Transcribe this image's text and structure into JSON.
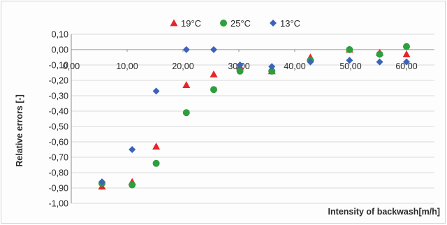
{
  "chart_data": {
    "type": "scatter",
    "xlabel": "Intensity of backwash[m/h]",
    "ylabel": "Relative errors [-]",
    "xlim": [
      0,
      65
    ],
    "ylim": [
      -1.0,
      0.1
    ],
    "x_ticks": [
      "0,00",
      "10,00",
      "20,00",
      "30,00",
      "40,00",
      "50,00",
      "60,00"
    ],
    "x_tick_values": [
      0,
      10,
      20,
      30,
      40,
      50,
      60
    ],
    "y_ticks": [
      "0,10",
      "0,00",
      "-0,10",
      "-0,20",
      "-0,30",
      "-0,40",
      "-0,50",
      "-0,60",
      "-0,70",
      "-0,80",
      "-0,90",
      "-1,00"
    ],
    "y_tick_values": [
      0.1,
      0.0,
      -0.1,
      -0.2,
      -0.3,
      -0.4,
      -0.5,
      -0.6,
      -0.7,
      -0.8,
      -0.9,
      -1.0
    ],
    "grid": "horizontal",
    "legend_position": "top",
    "series": [
      {
        "name": "19°C",
        "marker": "triangle",
        "color": "#e8232a",
        "points": [
          [
            5.5,
            -0.89
          ],
          [
            10.9,
            -0.86
          ],
          [
            15.2,
            -0.63
          ],
          [
            20.6,
            -0.23
          ],
          [
            25.5,
            -0.16
          ],
          [
            30.2,
            -0.11
          ],
          [
            35.9,
            -0.14
          ],
          [
            42.8,
            -0.05
          ],
          [
            49.8,
            0.0
          ],
          [
            55.2,
            -0.02
          ],
          [
            60.0,
            -0.03
          ]
        ]
      },
      {
        "name": "25°C",
        "marker": "circle",
        "color": "#2f9e3f",
        "points": [
          [
            5.5,
            -0.87
          ],
          [
            10.9,
            -0.88
          ],
          [
            15.2,
            -0.74
          ],
          [
            20.6,
            -0.41
          ],
          [
            25.5,
            -0.26
          ],
          [
            30.2,
            -0.14
          ],
          [
            35.9,
            -0.14
          ],
          [
            42.8,
            -0.07
          ],
          [
            49.8,
            0.0
          ],
          [
            55.2,
            -0.03
          ],
          [
            60.0,
            0.02
          ]
        ]
      },
      {
        "name": "13°C",
        "marker": "diamond",
        "color": "#3d63b8",
        "points": [
          [
            5.5,
            -0.86
          ],
          [
            10.9,
            -0.65
          ],
          [
            15.2,
            -0.27
          ],
          [
            20.6,
            0.0
          ],
          [
            25.5,
            0.0
          ],
          [
            30.2,
            -0.1
          ],
          [
            35.9,
            -0.11
          ],
          [
            42.8,
            -0.08
          ],
          [
            49.8,
            -0.07
          ],
          [
            55.2,
            -0.08
          ],
          [
            60.0,
            -0.08
          ]
        ]
      }
    ]
  }
}
